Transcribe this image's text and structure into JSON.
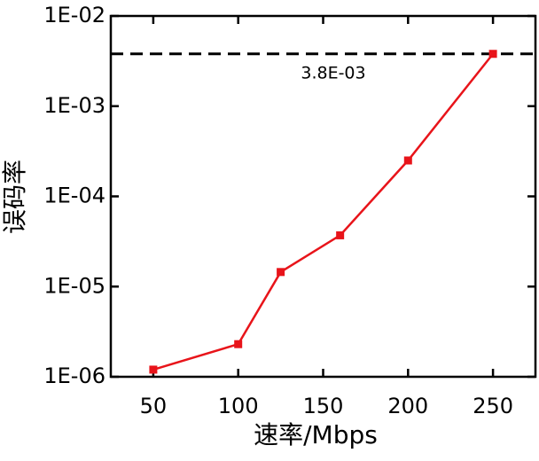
{
  "chart_data": {
    "type": "line",
    "xlabel": "速率/Mbps",
    "ylabel": "误码率",
    "x": [
      50,
      100,
      125,
      160,
      200,
      250
    ],
    "series": [
      {
        "color": "#e8141a",
        "values": [
          1.2e-06,
          2.3e-06,
          1.45e-05,
          3.7e-05,
          0.00025,
          0.0038
        ]
      }
    ],
    "xlim": [
      25,
      275
    ],
    "xticks": [
      50,
      100,
      150,
      200,
      250
    ],
    "ylim": [
      1e-06,
      0.01
    ],
    "log_y": true,
    "yticks": [
      {
        "value": 1e-06,
        "label": "1E-06"
      },
      {
        "value": 1e-05,
        "label": "1E-05"
      },
      {
        "value": 0.0001,
        "label": "1E-04"
      },
      {
        "value": 0.001,
        "label": "1E-03"
      },
      {
        "value": 0.01,
        "label": "1E-02"
      }
    ],
    "threshold": {
      "value": 0.0038,
      "label": "3.8E-03"
    }
  }
}
